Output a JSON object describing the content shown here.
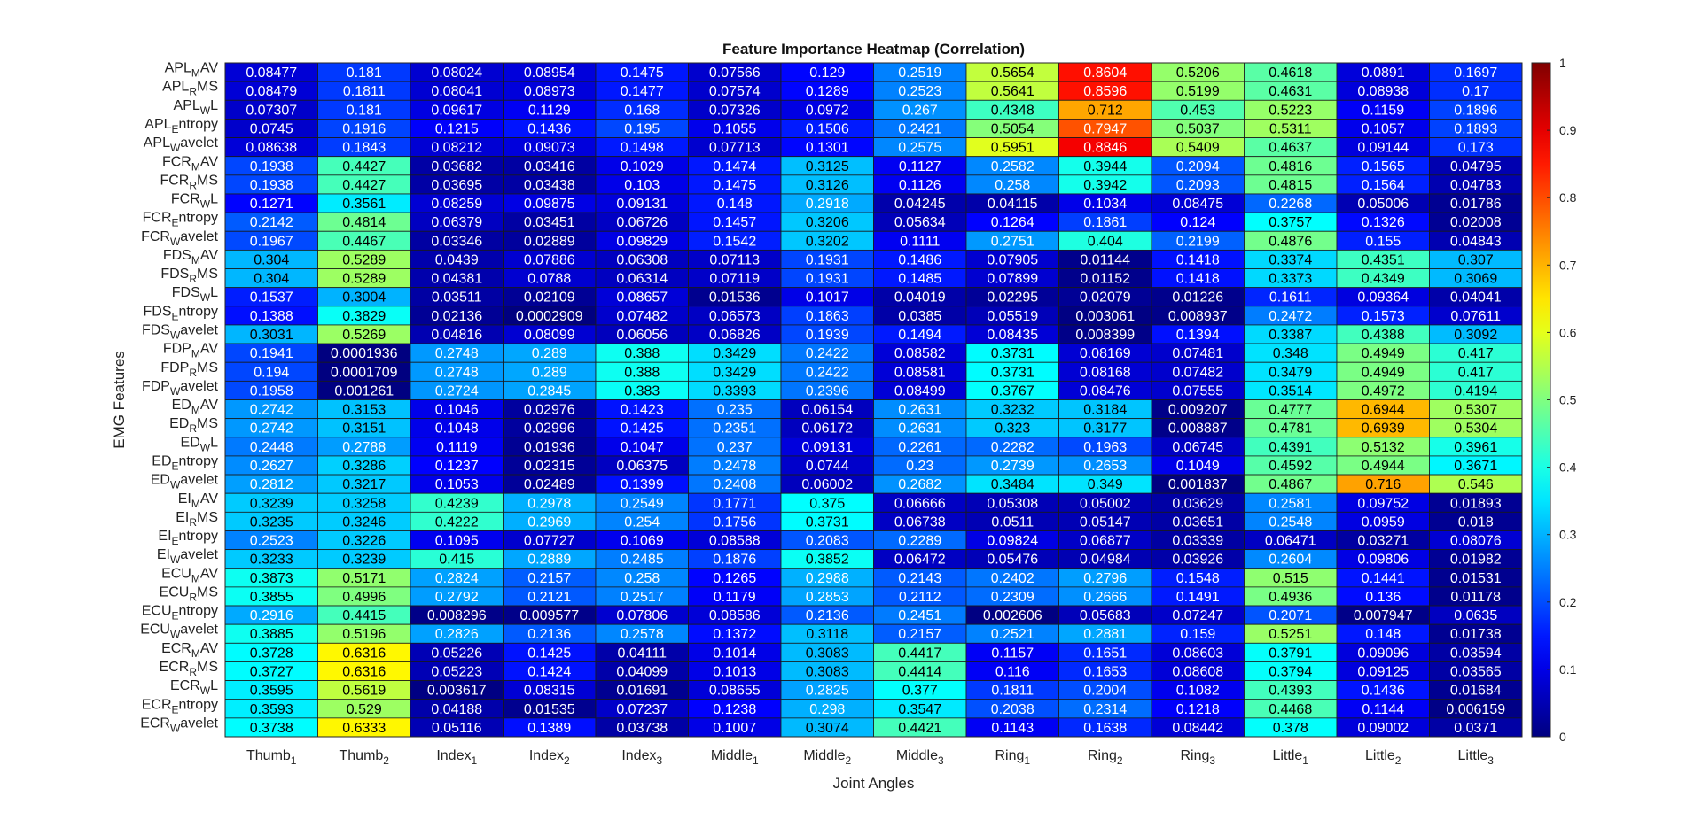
{
  "chart_data": {
    "type": "heatmap",
    "title": "Feature Importance Heatmap (Correlation)",
    "xlabel": "Joint Angles",
    "ylabel": "EMG Features",
    "colormap": "jet",
    "clim": [
      0,
      1
    ],
    "colorbar_ticks": [
      "0",
      "0.1",
      "0.2",
      "0.3",
      "0.4",
      "0.5",
      "0.6",
      "0.7",
      "0.8",
      "0.9",
      "1"
    ],
    "columns": [
      {
        "base": "Thumb",
        "sub": "1"
      },
      {
        "base": "Thumb",
        "sub": "2"
      },
      {
        "base": "Index",
        "sub": "1"
      },
      {
        "base": "Index",
        "sub": "2"
      },
      {
        "base": "Index",
        "sub": "3"
      },
      {
        "base": "Middle",
        "sub": "1"
      },
      {
        "base": "Middle",
        "sub": "2"
      },
      {
        "base": "Middle",
        "sub": "3"
      },
      {
        "base": "Ring",
        "sub": "1"
      },
      {
        "base": "Ring",
        "sub": "2"
      },
      {
        "base": "Ring",
        "sub": "3"
      },
      {
        "base": "Little",
        "sub": "1"
      },
      {
        "base": "Little",
        "sub": "2"
      },
      {
        "base": "Little",
        "sub": "3"
      }
    ],
    "rows": [
      {
        "pre": "APL",
        "sub": "M",
        "post": "AV",
        "values": [
          "0.08477",
          "0.181",
          "0.08024",
          "0.08954",
          "0.1475",
          "0.07566",
          "0.129",
          "0.2519",
          "0.5654",
          "0.8604",
          "0.5206",
          "0.4618",
          "0.0891",
          "0.1697"
        ]
      },
      {
        "pre": "APL",
        "sub": "R",
        "post": "MS",
        "values": [
          "0.08479",
          "0.1811",
          "0.08041",
          "0.08973",
          "0.1477",
          "0.07574",
          "0.1289",
          "0.2523",
          "0.5641",
          "0.8596",
          "0.5199",
          "0.4631",
          "0.08938",
          "0.17"
        ]
      },
      {
        "pre": "APL",
        "sub": "W",
        "post": "L",
        "values": [
          "0.07307",
          "0.181",
          "0.09617",
          "0.1129",
          "0.168",
          "0.07326",
          "0.0972",
          "0.267",
          "0.4348",
          "0.712",
          "0.453",
          "0.5223",
          "0.1159",
          "0.1896"
        ]
      },
      {
        "pre": "APL",
        "sub": "E",
        "post": "ntropy",
        "values": [
          "0.0745",
          "0.1916",
          "0.1215",
          "0.1436",
          "0.195",
          "0.1055",
          "0.1506",
          "0.2421",
          "0.5054",
          "0.7947",
          "0.5037",
          "0.5311",
          "0.1057",
          "0.1893"
        ]
      },
      {
        "pre": "APL",
        "sub": "W",
        "post": "avelet",
        "values": [
          "0.08638",
          "0.1843",
          "0.08212",
          "0.09073",
          "0.1498",
          "0.07713",
          "0.1301",
          "0.2575",
          "0.5951",
          "0.8846",
          "0.5409",
          "0.4637",
          "0.09144",
          "0.173"
        ]
      },
      {
        "pre": "FCR",
        "sub": "M",
        "post": "AV",
        "values": [
          "0.1938",
          "0.4427",
          "0.03682",
          "0.03416",
          "0.1029",
          "0.1474",
          "0.3125",
          "0.1127",
          "0.2582",
          "0.3944",
          "0.2094",
          "0.4816",
          "0.1565",
          "0.04795"
        ]
      },
      {
        "pre": "FCR",
        "sub": "R",
        "post": "MS",
        "values": [
          "0.1938",
          "0.4427",
          "0.03695",
          "0.03438",
          "0.103",
          "0.1475",
          "0.3126",
          "0.1126",
          "0.258",
          "0.3942",
          "0.2093",
          "0.4815",
          "0.1564",
          "0.04783"
        ]
      },
      {
        "pre": "FCR",
        "sub": "W",
        "post": "L",
        "values": [
          "0.1271",
          "0.3561",
          "0.08259",
          "0.09875",
          "0.09131",
          "0.148",
          "0.2918",
          "0.04245",
          "0.04115",
          "0.1034",
          "0.08475",
          "0.2268",
          "0.05006",
          "0.01786"
        ]
      },
      {
        "pre": "FCR",
        "sub": "E",
        "post": "ntropy",
        "values": [
          "0.2142",
          "0.4814",
          "0.06379",
          "0.03451",
          "0.06726",
          "0.1457",
          "0.3206",
          "0.05634",
          "0.1264",
          "0.1861",
          "0.124",
          "0.3757",
          "0.1326",
          "0.02008"
        ]
      },
      {
        "pre": "FCR",
        "sub": "W",
        "post": "avelet",
        "values": [
          "0.1967",
          "0.4467",
          "0.03346",
          "0.02889",
          "0.09829",
          "0.1542",
          "0.3202",
          "0.1111",
          "0.2751",
          "0.404",
          "0.2199",
          "0.4876",
          "0.155",
          "0.04843"
        ]
      },
      {
        "pre": "FDS",
        "sub": "M",
        "post": "AV",
        "values": [
          "0.304",
          "0.5289",
          "0.0439",
          "0.07886",
          "0.06308",
          "0.07113",
          "0.1931",
          "0.1486",
          "0.07905",
          "0.01144",
          "0.1418",
          "0.3374",
          "0.4351",
          "0.307"
        ]
      },
      {
        "pre": "FDS",
        "sub": "R",
        "post": "MS",
        "values": [
          "0.304",
          "0.5289",
          "0.04381",
          "0.0788",
          "0.06314",
          "0.07119",
          "0.1931",
          "0.1485",
          "0.07899",
          "0.01152",
          "0.1418",
          "0.3373",
          "0.4349",
          "0.3069"
        ]
      },
      {
        "pre": "FDS",
        "sub": "W",
        "post": "L",
        "values": [
          "0.1537",
          "0.3004",
          "0.03511",
          "0.02109",
          "0.08657",
          "0.01536",
          "0.1017",
          "0.04019",
          "0.02295",
          "0.02079",
          "0.01226",
          "0.1611",
          "0.09364",
          "0.04041"
        ]
      },
      {
        "pre": "FDS",
        "sub": "E",
        "post": "ntropy",
        "values": [
          "0.1388",
          "0.3829",
          "0.02136",
          "0.0002909",
          "0.07482",
          "0.06573",
          "0.1863",
          "0.0385",
          "0.05519",
          "0.003061",
          "0.008937",
          "0.2472",
          "0.1573",
          "0.07611"
        ]
      },
      {
        "pre": "FDS",
        "sub": "W",
        "post": "avelet",
        "values": [
          "0.3031",
          "0.5269",
          "0.04816",
          "0.08099",
          "0.06056",
          "0.06826",
          "0.1939",
          "0.1494",
          "0.08435",
          "0.008399",
          "0.1394",
          "0.3387",
          "0.4388",
          "0.3092"
        ]
      },
      {
        "pre": "FDP",
        "sub": "M",
        "post": "AV",
        "values": [
          "0.1941",
          "0.0001936",
          "0.2748",
          "0.289",
          "0.388",
          "0.3429",
          "0.2422",
          "0.08582",
          "0.3731",
          "0.08169",
          "0.07481",
          "0.348",
          "0.4949",
          "0.417"
        ]
      },
      {
        "pre": "FDP",
        "sub": "R",
        "post": "MS",
        "values": [
          "0.194",
          "0.0001709",
          "0.2748",
          "0.289",
          "0.388",
          "0.3429",
          "0.2422",
          "0.08581",
          "0.3731",
          "0.08168",
          "0.07482",
          "0.3479",
          "0.4949",
          "0.417"
        ]
      },
      {
        "pre": "FDP",
        "sub": "W",
        "post": "avelet",
        "values": [
          "0.1958",
          "0.001261",
          "0.2724",
          "0.2845",
          "0.383",
          "0.3393",
          "0.2396",
          "0.08499",
          "0.3767",
          "0.08476",
          "0.07555",
          "0.3514",
          "0.4972",
          "0.4194"
        ]
      },
      {
        "pre": "ED",
        "sub": "M",
        "post": "AV",
        "values": [
          "0.2742",
          "0.3153",
          "0.1046",
          "0.02976",
          "0.1423",
          "0.235",
          "0.06154",
          "0.2631",
          "0.3232",
          "0.3184",
          "0.009207",
          "0.4777",
          "0.6944",
          "0.5307"
        ]
      },
      {
        "pre": "ED",
        "sub": "R",
        "post": "MS",
        "values": [
          "0.2742",
          "0.3151",
          "0.1048",
          "0.02996",
          "0.1425",
          "0.2351",
          "0.06172",
          "0.2631",
          "0.323",
          "0.3177",
          "0.008887",
          "0.4781",
          "0.6939",
          "0.5304"
        ]
      },
      {
        "pre": "ED",
        "sub": "W",
        "post": "L",
        "values": [
          "0.2448",
          "0.2788",
          "0.1119",
          "0.01936",
          "0.1047",
          "0.237",
          "0.09131",
          "0.2261",
          "0.2282",
          "0.1963",
          "0.06745",
          "0.4391",
          "0.5132",
          "0.3961"
        ]
      },
      {
        "pre": "ED",
        "sub": "E",
        "post": "ntropy",
        "values": [
          "0.2627",
          "0.3286",
          "0.1237",
          "0.02315",
          "0.06375",
          "0.2478",
          "0.0744",
          "0.23",
          "0.2739",
          "0.2653",
          "0.1049",
          "0.4592",
          "0.4944",
          "0.3671"
        ]
      },
      {
        "pre": "ED",
        "sub": "W",
        "post": "avelet",
        "values": [
          "0.2812",
          "0.3217",
          "0.1053",
          "0.02489",
          "0.1399",
          "0.2408",
          "0.06002",
          "0.2682",
          "0.3484",
          "0.349",
          "0.001837",
          "0.4867",
          "0.716",
          "0.546"
        ]
      },
      {
        "pre": "EI",
        "sub": "M",
        "post": "AV",
        "values": [
          "0.3239",
          "0.3258",
          "0.4239",
          "0.2978",
          "0.2549",
          "0.1771",
          "0.375",
          "0.06666",
          "0.05308",
          "0.05002",
          "0.03629",
          "0.2581",
          "0.09752",
          "0.01893"
        ]
      },
      {
        "pre": "EI",
        "sub": "R",
        "post": "MS",
        "values": [
          "0.3235",
          "0.3246",
          "0.4222",
          "0.2969",
          "0.254",
          "0.1756",
          "0.3731",
          "0.06738",
          "0.0511",
          "0.05147",
          "0.03651",
          "0.2548",
          "0.0959",
          "0.018"
        ]
      },
      {
        "pre": "EI",
        "sub": "E",
        "post": "ntropy",
        "values": [
          "0.2523",
          "0.3226",
          "0.1095",
          "0.07727",
          "0.1069",
          "0.08588",
          "0.2083",
          "0.2289",
          "0.09824",
          "0.06877",
          "0.03339",
          "0.06471",
          "0.03271",
          "0.08076"
        ]
      },
      {
        "pre": "EI",
        "sub": "W",
        "post": "avelet",
        "values": [
          "0.3233",
          "0.3239",
          "0.415",
          "0.2889",
          "0.2485",
          "0.1876",
          "0.3852",
          "0.06472",
          "0.05476",
          "0.04984",
          "0.03926",
          "0.2604",
          "0.09806",
          "0.01982"
        ]
      },
      {
        "pre": "ECU",
        "sub": "M",
        "post": "AV",
        "values": [
          "0.3873",
          "0.5171",
          "0.2824",
          "0.2157",
          "0.258",
          "0.1265",
          "0.2988",
          "0.2143",
          "0.2402",
          "0.2796",
          "0.1548",
          "0.515",
          "0.1441",
          "0.01531"
        ]
      },
      {
        "pre": "ECU",
        "sub": "R",
        "post": "MS",
        "values": [
          "0.3855",
          "0.4996",
          "0.2792",
          "0.2121",
          "0.2517",
          "0.1179",
          "0.2853",
          "0.2112",
          "0.2309",
          "0.2666",
          "0.1491",
          "0.4936",
          "0.136",
          "0.01178"
        ]
      },
      {
        "pre": "ECU",
        "sub": "E",
        "post": "ntropy",
        "values": [
          "0.2916",
          "0.4415",
          "0.008296",
          "0.009577",
          "0.07806",
          "0.08586",
          "0.2136",
          "0.2451",
          "0.002606",
          "0.05683",
          "0.07247",
          "0.2071",
          "0.007947",
          "0.0635"
        ]
      },
      {
        "pre": "ECU",
        "sub": "W",
        "post": "avelet",
        "values": [
          "0.3885",
          "0.5196",
          "0.2826",
          "0.2136",
          "0.2578",
          "0.1372",
          "0.3118",
          "0.2157",
          "0.2521",
          "0.2881",
          "0.159",
          "0.5251",
          "0.148",
          "0.01738"
        ]
      },
      {
        "pre": "ECR",
        "sub": "M",
        "post": "AV",
        "values": [
          "0.3728",
          "0.6316",
          "0.05226",
          "0.1425",
          "0.04111",
          "0.1014",
          "0.3083",
          "0.4417",
          "0.1157",
          "0.1651",
          "0.08603",
          "0.3791",
          "0.09096",
          "0.03594"
        ]
      },
      {
        "pre": "ECR",
        "sub": "R",
        "post": "MS",
        "values": [
          "0.3727",
          "0.6316",
          "0.05223",
          "0.1424",
          "0.04099",
          "0.1013",
          "0.3083",
          "0.4414",
          "0.116",
          "0.1653",
          "0.08608",
          "0.3794",
          "0.09125",
          "0.03565"
        ]
      },
      {
        "pre": "ECR",
        "sub": "W",
        "post": "L",
        "values": [
          "0.3595",
          "0.5619",
          "0.003617",
          "0.08315",
          "0.01691",
          "0.08655",
          "0.2825",
          "0.377",
          "0.1811",
          "0.2004",
          "0.1082",
          "0.4393",
          "0.1436",
          "0.01684"
        ]
      },
      {
        "pre": "ECR",
        "sub": "E",
        "post": "ntropy",
        "values": [
          "0.3593",
          "0.529",
          "0.04188",
          "0.01535",
          "0.07237",
          "0.1238",
          "0.298",
          "0.3547",
          "0.2038",
          "0.2314",
          "0.1218",
          "0.4468",
          "0.1144",
          "0.006159"
        ]
      },
      {
        "pre": "ECR",
        "sub": "W",
        "post": "avelet",
        "values": [
          "0.3738",
          "0.6333",
          "0.05116",
          "0.1389",
          "0.03738",
          "0.1007",
          "0.3074",
          "0.4421",
          "0.1143",
          "0.1638",
          "0.08442",
          "0.378",
          "0.09002",
          "0.0371"
        ]
      }
    ]
  }
}
